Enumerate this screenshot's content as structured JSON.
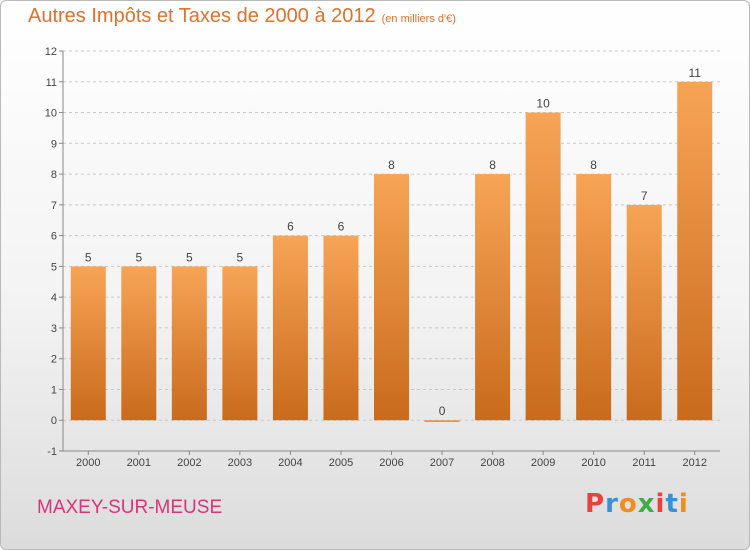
{
  "header": {
    "title": "Autres Impôts et Taxes de 2000 à 2012",
    "subtitle": "(en milliers d'€)"
  },
  "footer": {
    "commune": "MAXEY-SUR-MEUSE",
    "brand": "Proxiti"
  },
  "colors": {
    "bar_top": "#f7a456",
    "bar_bottom": "#c96a1c",
    "title": "#e0712b",
    "commune": "#d8357a",
    "grid": "#c8c8c8",
    "axis_text": "#444444",
    "brand_letters": [
      "#e8423a",
      "#3a8fd8",
      "#f28c1c",
      "#3fae49",
      "#e8423a",
      "#3a8fd8",
      "#f28c1c"
    ]
  },
  "chart_data": {
    "type": "bar",
    "title": "Autres Impôts et Taxes de 2000 à 2012",
    "subtitle": "(en milliers d'€)",
    "xlabel": "",
    "ylabel": "",
    "categories": [
      "2000",
      "2001",
      "2002",
      "2003",
      "2004",
      "2005",
      "2006",
      "2007",
      "2008",
      "2009",
      "2010",
      "2011",
      "2012"
    ],
    "values": [
      5,
      5,
      5,
      5,
      6,
      6,
      8,
      0,
      8,
      10,
      8,
      7,
      11
    ],
    "data_labels": [
      "5",
      "5",
      "5",
      "5",
      "6",
      "6",
      "8",
      "0",
      "8",
      "10",
      "8",
      "7",
      "11"
    ],
    "ylim": [
      -1,
      12
    ],
    "yticks": [
      -1,
      0,
      1,
      2,
      3,
      4,
      5,
      6,
      7,
      8,
      9,
      10,
      11,
      12
    ],
    "grid": true,
    "legend": "none"
  }
}
